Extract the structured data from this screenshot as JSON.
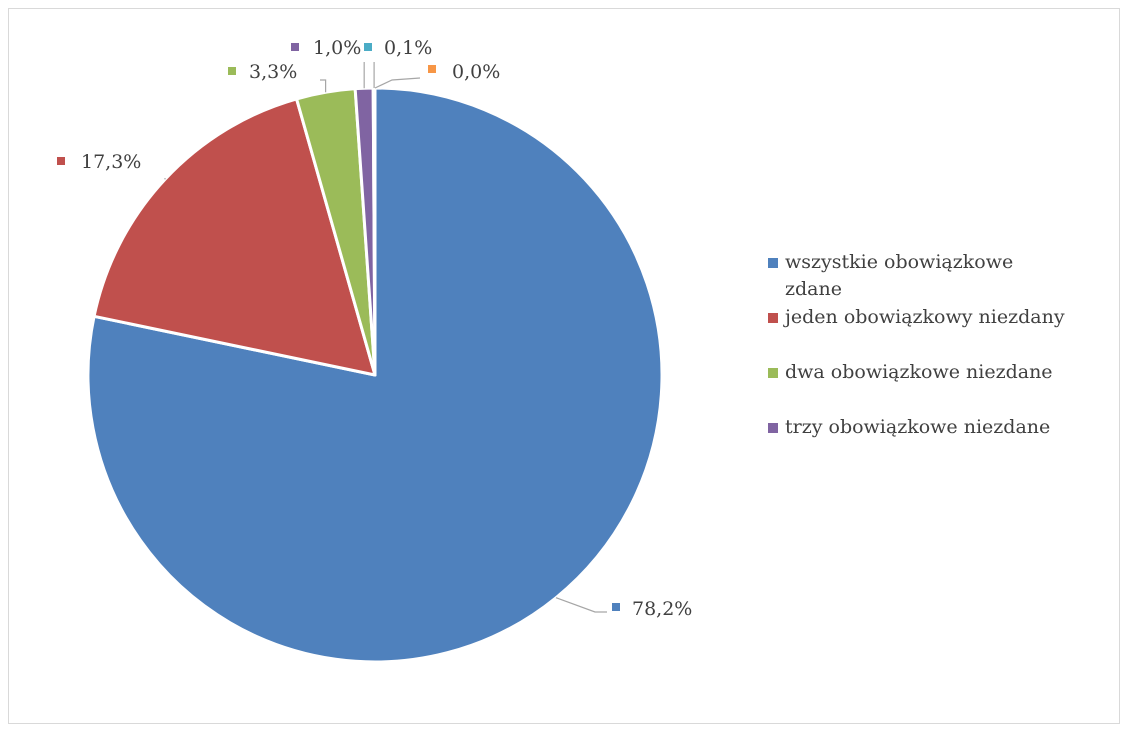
{
  "chart_data": {
    "type": "pie",
    "title": "",
    "legend_position": "right",
    "series": [
      {
        "name": "",
        "values": [
          78.2,
          17.3,
          3.3,
          1.0,
          0.1,
          0.0
        ],
        "labels": [
          "78,2%",
          "17,3%",
          "3,3%",
          "1,0%",
          "0,1%",
          "0,0%"
        ],
        "colors": [
          "#4f81bd",
          "#c0504d",
          "#9bbb59",
          "#8064a2",
          "#4bacc6",
          "#f79646"
        ]
      }
    ],
    "categories": [
      "wszystkie obowiązkowe zdane",
      "jeden obowiązkowy niezdany",
      "dwa obowiązkowe niezdane",
      "trzy obowiązkowe niezdane",
      "",
      ""
    ],
    "legend": [
      {
        "line1": "wszystkie obowiązkowe",
        "line2": "zdane",
        "color": "#4f81bd"
      },
      {
        "line1": "jeden obowiązkowy niezdany",
        "line2": "",
        "color": "#c0504d"
      },
      {
        "line1": "dwa obowiązkowe niezdane",
        "line2": "",
        "color": "#9bbb59"
      },
      {
        "line1": "trzy obowiązkowe niezdane",
        "line2": "",
        "color": "#8064a2"
      }
    ]
  }
}
